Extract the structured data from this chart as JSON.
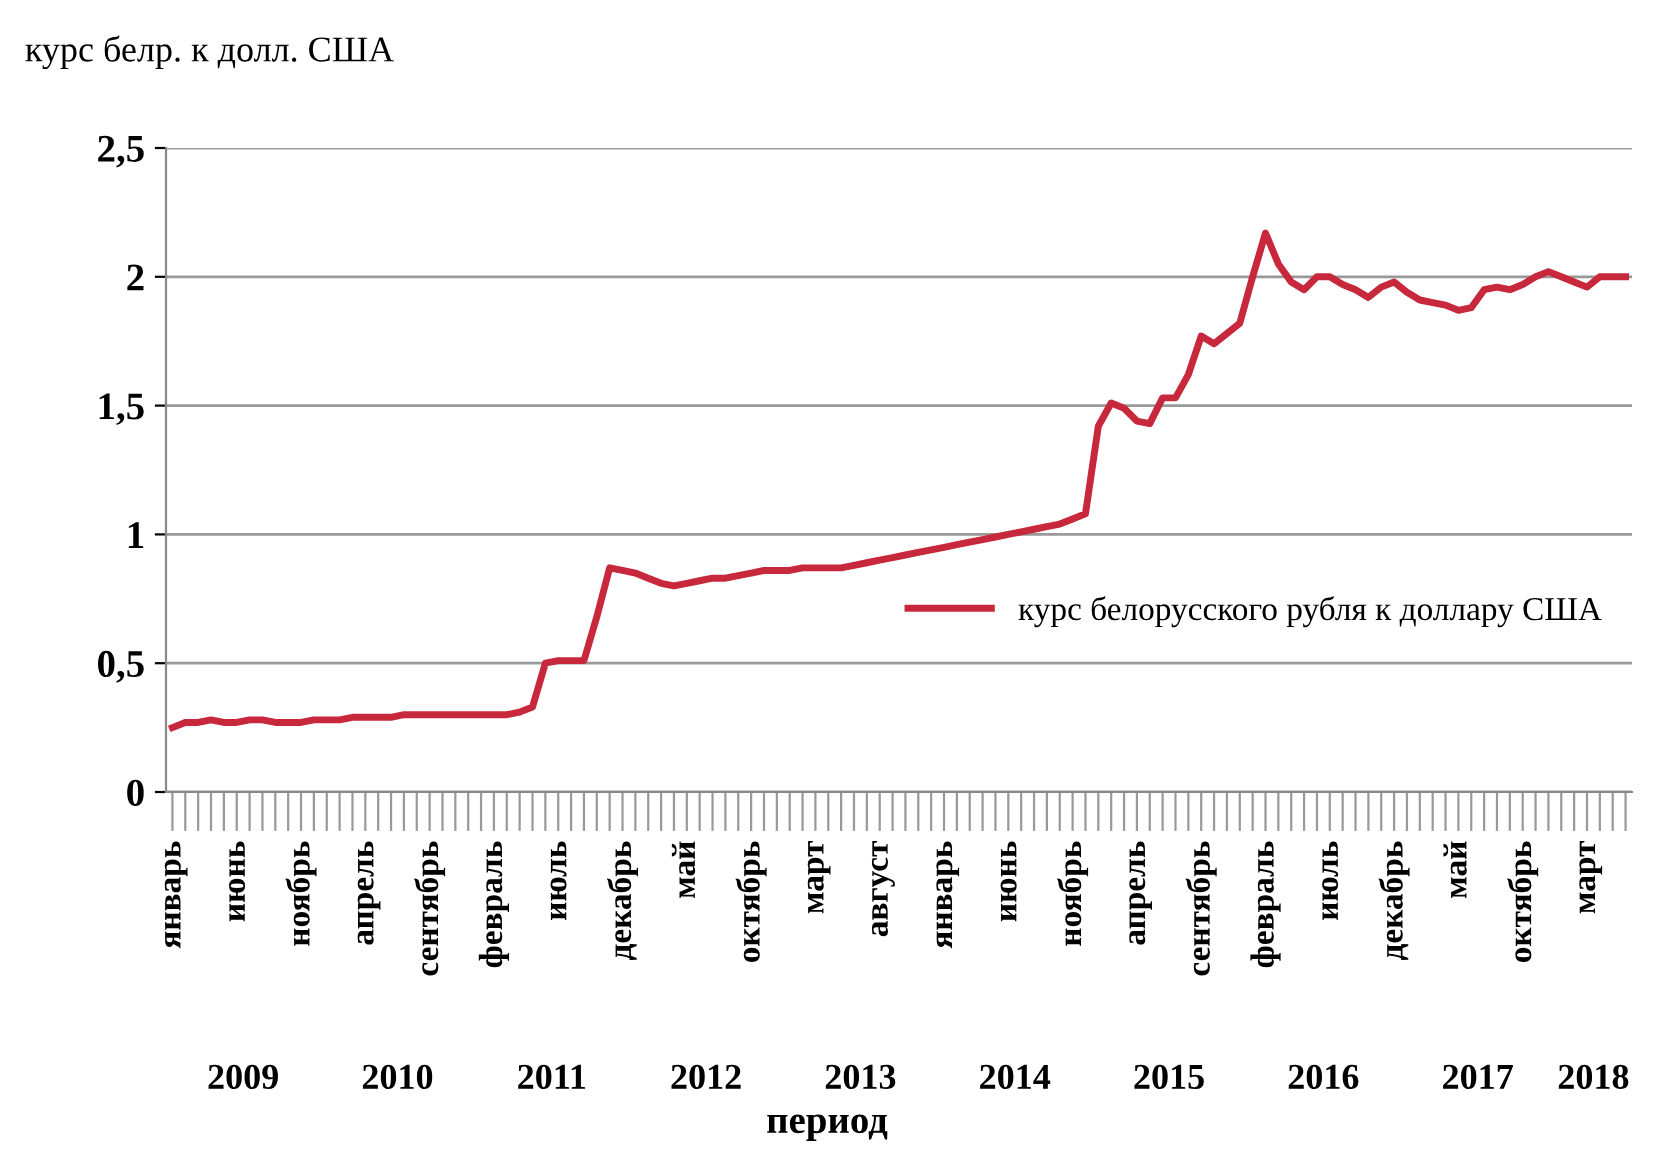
{
  "chart_data": {
    "type": "line",
    "ylabel": "курс белр. к долл. США",
    "xlabel": "период",
    "categories": [
      "январь",
      null,
      null,
      null,
      null,
      "июнь",
      null,
      null,
      null,
      null,
      "ноябрь",
      null,
      null,
      null,
      null,
      "апрель",
      null,
      null,
      null,
      null,
      "сентябрь",
      null,
      null,
      null,
      null,
      "февраль",
      null,
      null,
      null,
      null,
      "июль",
      null,
      null,
      null,
      null,
      "декабрь",
      null,
      null,
      null,
      null,
      "май",
      null,
      null,
      null,
      null,
      "октябрь",
      null,
      null,
      null,
      null,
      "март",
      null,
      null,
      null,
      null,
      "август",
      null,
      null,
      null,
      null,
      "январь",
      null,
      null,
      null,
      null,
      "июнь",
      null,
      null,
      null,
      null,
      "ноябрь",
      null,
      null,
      null,
      null,
      "апрель",
      null,
      null,
      null,
      null,
      "сентябрь",
      null,
      null,
      null,
      null,
      "февраль",
      null,
      null,
      null,
      null,
      "июль",
      null,
      null,
      null,
      null,
      "декабрь",
      null,
      null,
      null,
      null,
      "май",
      null,
      null,
      null,
      null,
      "октябрь",
      null,
      null,
      null,
      null,
      "март",
      null,
      null,
      null
    ],
    "series": [
      {
        "name": "курс белорусского рубля к доллару США",
        "color": "#c8283c",
        "values": [
          0.25,
          0.27,
          0.27,
          0.28,
          0.27,
          0.27,
          0.28,
          0.28,
          0.27,
          0.27,
          0.27,
          0.28,
          0.28,
          0.28,
          0.29,
          0.29,
          0.29,
          0.29,
          0.3,
          0.3,
          0.3,
          0.3,
          0.3,
          0.3,
          0.3,
          0.3,
          0.3,
          0.31,
          0.33,
          0.5,
          0.51,
          0.51,
          0.51,
          0.68,
          0.87,
          0.86,
          0.85,
          0.83,
          0.81,
          0.8,
          0.81,
          0.82,
          0.83,
          0.83,
          0.84,
          0.85,
          0.86,
          0.86,
          0.86,
          0.87,
          0.87,
          0.87,
          0.87,
          0.88,
          0.89,
          0.9,
          0.91,
          0.92,
          0.93,
          0.94,
          0.95,
          0.96,
          0.97,
          0.98,
          0.99,
          1.0,
          1.01,
          1.02,
          1.03,
          1.04,
          1.06,
          1.08,
          1.42,
          1.51,
          1.49,
          1.44,
          1.43,
          1.53,
          1.53,
          1.62,
          1.77,
          1.74,
          1.78,
          1.82,
          2.0,
          2.17,
          2.05,
          1.98,
          1.95,
          2.0,
          2.0,
          1.97,
          1.95,
          1.92,
          1.96,
          1.98,
          1.94,
          1.91,
          1.9,
          1.89,
          1.87,
          1.88,
          1.95,
          1.96,
          1.95,
          1.97,
          2.0,
          2.02,
          2.0,
          1.98,
          1.96,
          2.0,
          2.0,
          2.0
        ]
      }
    ],
    "ylim": [
      0,
      2.5
    ],
    "yticks": [
      0,
      {
        "value": 0.5,
        "label": "0,5"
      },
      1,
      {
        "value": 1.5,
        "label": "1,5"
      },
      2,
      {
        "value": 2.5,
        "label": "2,5"
      }
    ],
    "grid": "y",
    "legend": "right",
    "marker": "none",
    "line_style": "solid",
    "annotations": [
      "2009",
      "2010",
      "2011",
      "2012",
      "2013",
      "2014",
      "2015",
      "2016",
      "2017",
      "2018"
    ]
  }
}
